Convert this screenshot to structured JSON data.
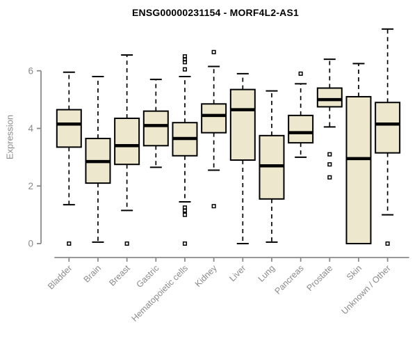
{
  "chart_data": {
    "type": "boxplot",
    "title": "ENSG00000231154 - MORF4L2-AS1",
    "ylabel": "Expression",
    "xlabel": "",
    "yticks": [
      0,
      2,
      4,
      6
    ],
    "ylim": [
      0,
      7.6
    ],
    "grid": false,
    "legend": "none",
    "colors": {
      "box_fill": "#EDE8CD",
      "box_stroke": "#000000",
      "median_stroke": "#000000",
      "whisker_stroke": "#000000",
      "outlier_stroke": "#000000",
      "axis_color": "#8a8a8a",
      "title_color": "#000000",
      "background": "#ffffff"
    },
    "categories": [
      "Bladder",
      "Brain",
      "Breast",
      "Gastric",
      "Hematopoietic cells",
      "Kidney",
      "Liver",
      "Lung",
      "Pancreas",
      "Prostate",
      "Skin",
      "Unknown / Other"
    ],
    "boxes": [
      {
        "category": "Bladder",
        "whisker_low": 1.35,
        "q1": 3.35,
        "median": 4.15,
        "q3": 4.65,
        "whisker_high": 5.95,
        "outliers": [
          0
        ]
      },
      {
        "category": "Brain",
        "whisker_low": 0.05,
        "q1": 2.1,
        "median": 2.85,
        "q3": 3.65,
        "whisker_high": 5.8,
        "outliers": []
      },
      {
        "category": "Breast",
        "whisker_low": 1.15,
        "q1": 2.75,
        "median": 3.4,
        "q3": 4.35,
        "whisker_high": 6.55,
        "outliers": [
          0
        ]
      },
      {
        "category": "Gastric",
        "whisker_low": 2.65,
        "q1": 3.4,
        "median": 4.1,
        "q3": 4.6,
        "whisker_high": 5.7,
        "outliers": []
      },
      {
        "category": "Hematopoietic cells",
        "whisker_low": 1.45,
        "q1": 3.05,
        "median": 3.65,
        "q3": 4.2,
        "whisker_high": 5.8,
        "outliers": [
          6.5,
          6.4,
          6.3,
          6.05,
          1.25,
          1.15,
          1.0,
          0
        ]
      },
      {
        "category": "Kidney",
        "whisker_low": 2.55,
        "q1": 3.85,
        "median": 4.45,
        "q3": 4.85,
        "whisker_high": 6.15,
        "outliers": [
          6.65,
          1.3
        ]
      },
      {
        "category": "Liver",
        "whisker_low": 0.0,
        "q1": 2.9,
        "median": 4.65,
        "q3": 5.35,
        "whisker_high": 5.9,
        "outliers": []
      },
      {
        "category": "Lung",
        "whisker_low": 0.05,
        "q1": 1.55,
        "median": 2.7,
        "q3": 3.75,
        "whisker_high": 5.3,
        "outliers": []
      },
      {
        "category": "Pancreas",
        "whisker_low": 3.0,
        "q1": 3.5,
        "median": 3.85,
        "q3": 4.45,
        "whisker_high": 5.55,
        "outliers": [
          5.9
        ]
      },
      {
        "category": "Prostate",
        "whisker_low": 4.05,
        "q1": 4.75,
        "median": 5.0,
        "q3": 5.4,
        "whisker_high": 6.4,
        "outliers": [
          3.1,
          2.75,
          2.3
        ]
      },
      {
        "category": "Skin",
        "whisker_low": 0.0,
        "q1": 0.0,
        "median": 2.95,
        "q3": 5.1,
        "whisker_high": 6.25,
        "outliers": []
      },
      {
        "category": "Unknown / Other",
        "whisker_low": 1.0,
        "q1": 3.15,
        "median": 4.15,
        "q3": 4.9,
        "whisker_high": 7.45,
        "outliers": [
          0
        ]
      }
    ]
  }
}
